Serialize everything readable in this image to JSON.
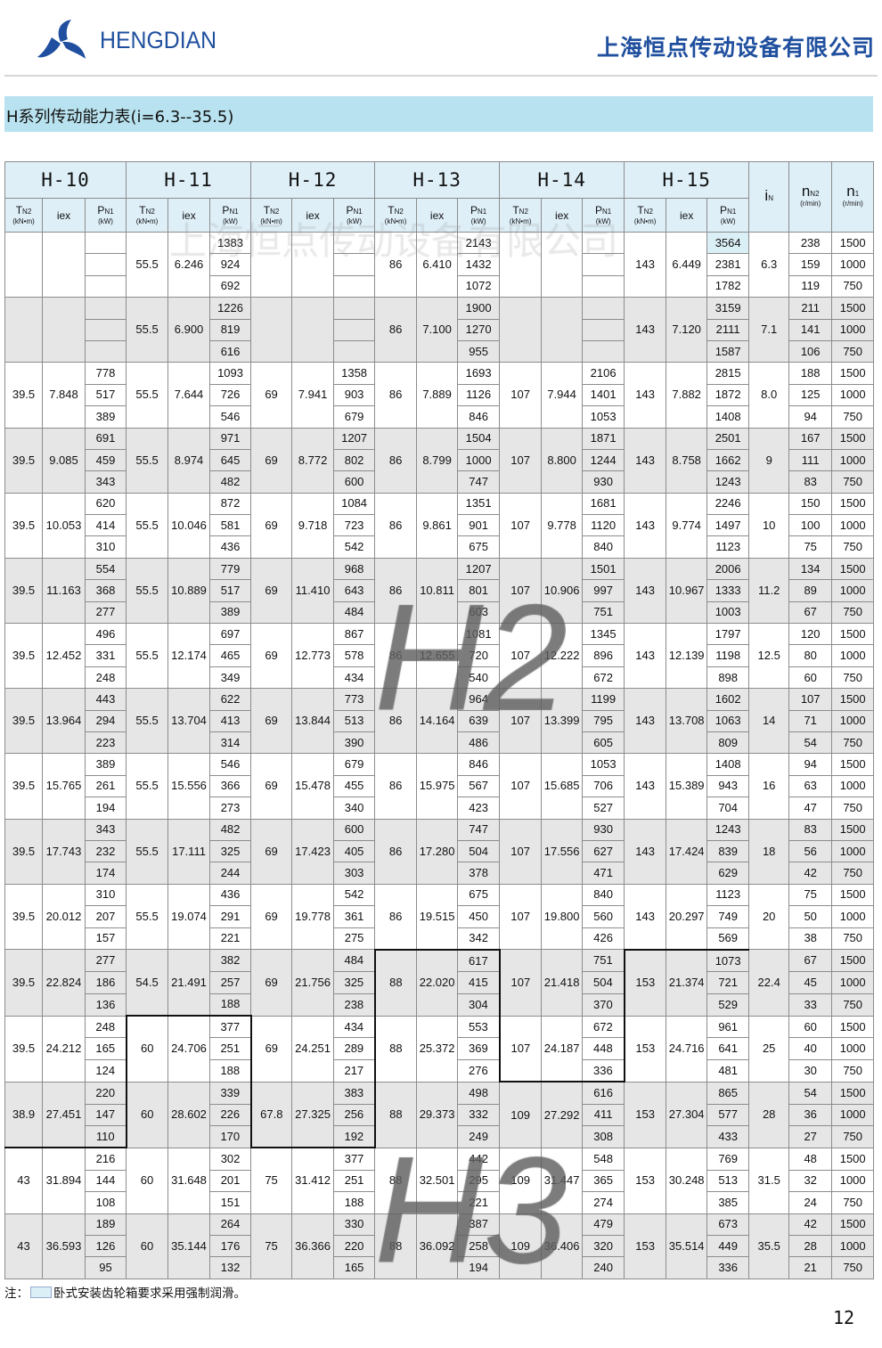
{
  "header": {
    "brand": "HENGDIAN",
    "company": "上海恒点传动设备有限公司",
    "logo_icon": "pinwheel-logo-icon",
    "brand_color": "#1f4f9e"
  },
  "title": "H系列传动能力表(i=6.3--35.5)",
  "watermark": "上海恒点传动设备有限公司",
  "region_marks": {
    "h2": "H2",
    "h3": "H3"
  },
  "table": {
    "models": [
      "H-10",
      "H-11",
      "H-12",
      "H-13",
      "H-14",
      "H-15"
    ],
    "sub_headers": {
      "tn2": {
        "sym": "T",
        "sub": "N2",
        "unit": "(kN•m)"
      },
      "iex": {
        "sym": "iex"
      },
      "pn1": {
        "sym": "P",
        "sub": "N1",
        "unit": "(kW)"
      }
    },
    "in_header": {
      "sym": "i",
      "sub": "N"
    },
    "nn2_header": {
      "sym": "n",
      "sub": "N2",
      "unit": "(r/min)"
    },
    "n1_header": {
      "sym": "n",
      "sub": "1",
      "unit": "(r/min)"
    },
    "highlight_color": "#dbeff7",
    "groups": [
      {
        "iN": "6.3",
        "nN2": [
          "238",
          "159",
          "119"
        ],
        "n1": [
          "1500",
          "1000",
          "750"
        ],
        "m": [
          null,
          [
            "55.5",
            "6.246",
            [
              "1383",
              "924",
              "692"
            ]
          ],
          null,
          [
            "86",
            "6.410",
            [
              "2143",
              "1432",
              "1072"
            ]
          ],
          null,
          [
            "143",
            "6.449",
            [
              "3564",
              "2381",
              "1782"
            ]
          ]
        ]
      },
      {
        "iN": "7.1",
        "nN2": [
          "211",
          "141",
          "106"
        ],
        "n1": [
          "1500",
          "1000",
          "750"
        ],
        "m": [
          null,
          [
            "55.5",
            "6.900",
            [
              "1226",
              "819",
              "616"
            ]
          ],
          null,
          [
            "86",
            "7.100",
            [
              "1900",
              "1270",
              "955"
            ]
          ],
          null,
          [
            "143",
            "7.120",
            [
              "3159",
              "2111",
              "1587"
            ]
          ]
        ]
      },
      {
        "iN": "8.0",
        "nN2": [
          "188",
          "125",
          "94"
        ],
        "n1": [
          "1500",
          "1000",
          "750"
        ],
        "m": [
          [
            "39.5",
            "7.848",
            [
              "778",
              "517",
              "389"
            ]
          ],
          [
            "55.5",
            "7.644",
            [
              "1093",
              "726",
              "546"
            ]
          ],
          [
            "69",
            "7.941",
            [
              "1358",
              "903",
              "679"
            ]
          ],
          [
            "86",
            "7.889",
            [
              "1693",
              "1126",
              "846"
            ]
          ],
          [
            "107",
            "7.944",
            [
              "2106",
              "1401",
              "1053"
            ]
          ],
          [
            "143",
            "7.882",
            [
              "2815",
              "1872",
              "1408"
            ]
          ]
        ]
      },
      {
        "iN": "9",
        "nN2": [
          "167",
          "111",
          "83"
        ],
        "n1": [
          "1500",
          "1000",
          "750"
        ],
        "m": [
          [
            "39.5",
            "9.085",
            [
              "691",
              "459",
              "343"
            ]
          ],
          [
            "55.5",
            "8.974",
            [
              "971",
              "645",
              "482"
            ]
          ],
          [
            "69",
            "8.772",
            [
              "1207",
              "802",
              "600"
            ]
          ],
          [
            "86",
            "8.799",
            [
              "1504",
              "1000",
              "747"
            ]
          ],
          [
            "107",
            "8.800",
            [
              "1871",
              "1244",
              "930"
            ]
          ],
          [
            "143",
            "8.758",
            [
              "2501",
              "1662",
              "1243"
            ]
          ]
        ]
      },
      {
        "iN": "10",
        "nN2": [
          "150",
          "100",
          "75"
        ],
        "n1": [
          "1500",
          "1000",
          "750"
        ],
        "m": [
          [
            "39.5",
            "10.053",
            [
              "620",
              "414",
              "310"
            ]
          ],
          [
            "55.5",
            "10.046",
            [
              "872",
              "581",
              "436"
            ]
          ],
          [
            "69",
            "9.718",
            [
              "1084",
              "723",
              "542"
            ]
          ],
          [
            "86",
            "9.861",
            [
              "1351",
              "901",
              "675"
            ]
          ],
          [
            "107",
            "9.778",
            [
              "1681",
              "1120",
              "840"
            ]
          ],
          [
            "143",
            "9.774",
            [
              "2246",
              "1497",
              "1123"
            ]
          ]
        ]
      },
      {
        "iN": "11.2",
        "nN2": [
          "134",
          "89",
          "67"
        ],
        "n1": [
          "1500",
          "1000",
          "750"
        ],
        "m": [
          [
            "39.5",
            "11.163",
            [
              "554",
              "368",
              "277"
            ]
          ],
          [
            "55.5",
            "10.889",
            [
              "779",
              "517",
              "389"
            ]
          ],
          [
            "69",
            "11.410",
            [
              "968",
              "643",
              "484"
            ]
          ],
          [
            "86",
            "10.811",
            [
              "1207",
              "801",
              "603"
            ]
          ],
          [
            "107",
            "10.906",
            [
              "1501",
              "997",
              "751"
            ]
          ],
          [
            "143",
            "10.967",
            [
              "2006",
              "1333",
              "1003"
            ]
          ]
        ]
      },
      {
        "iN": "12.5",
        "nN2": [
          "120",
          "80",
          "60"
        ],
        "n1": [
          "1500",
          "1000",
          "750"
        ],
        "m": [
          [
            "39.5",
            "12.452",
            [
              "496",
              "331",
              "248"
            ]
          ],
          [
            "55.5",
            "12.174",
            [
              "697",
              "465",
              "349"
            ]
          ],
          [
            "69",
            "12.773",
            [
              "867",
              "578",
              "434"
            ]
          ],
          [
            "86",
            "12.655",
            [
              "1081",
              "720",
              "540"
            ]
          ],
          [
            "107",
            "12.222",
            [
              "1345",
              "896",
              "672"
            ]
          ],
          [
            "143",
            "12.139",
            [
              "1797",
              "1198",
              "898"
            ]
          ]
        ]
      },
      {
        "iN": "14",
        "nN2": [
          "107",
          "71",
          "54"
        ],
        "n1": [
          "1500",
          "1000",
          "750"
        ],
        "m": [
          [
            "39.5",
            "13.964",
            [
              "443",
              "294",
              "223"
            ]
          ],
          [
            "55.5",
            "13.704",
            [
              "622",
              "413",
              "314"
            ]
          ],
          [
            "69",
            "13.844",
            [
              "773",
              "513",
              "390"
            ]
          ],
          [
            "86",
            "14.164",
            [
              "964",
              "639",
              "486"
            ]
          ],
          [
            "107",
            "13.399",
            [
              "1199",
              "795",
              "605"
            ]
          ],
          [
            "143",
            "13.708",
            [
              "1602",
              "1063",
              "809"
            ]
          ]
        ]
      },
      {
        "iN": "16",
        "nN2": [
          "94",
          "63",
          "47"
        ],
        "n1": [
          "1500",
          "1000",
          "750"
        ],
        "m": [
          [
            "39.5",
            "15.765",
            [
              "389",
              "261",
              "194"
            ]
          ],
          [
            "55.5",
            "15.556",
            [
              "546",
              "366",
              "273"
            ]
          ],
          [
            "69",
            "15.478",
            [
              "679",
              "455",
              "340"
            ]
          ],
          [
            "86",
            "15.975",
            [
              "846",
              "567",
              "423"
            ]
          ],
          [
            "107",
            "15.685",
            [
              "1053",
              "706",
              "527"
            ]
          ],
          [
            "143",
            "15.389",
            [
              "1408",
              "943",
              "704"
            ]
          ]
        ]
      },
      {
        "iN": "18",
        "nN2": [
          "83",
          "56",
          "42"
        ],
        "n1": [
          "1500",
          "1000",
          "750"
        ],
        "m": [
          [
            "39.5",
            "17.743",
            [
              "343",
              "232",
              "174"
            ]
          ],
          [
            "55.5",
            "17.111",
            [
              "482",
              "325",
              "244"
            ]
          ],
          [
            "69",
            "17.423",
            [
              "600",
              "405",
              "303"
            ]
          ],
          [
            "86",
            "17.280",
            [
              "747",
              "504",
              "378"
            ]
          ],
          [
            "107",
            "17.556",
            [
              "930",
              "627",
              "471"
            ]
          ],
          [
            "143",
            "17.424",
            [
              "1243",
              "839",
              "629"
            ]
          ]
        ]
      },
      {
        "iN": "20",
        "nN2": [
          "75",
          "50",
          "38"
        ],
        "n1": [
          "1500",
          "1000",
          "750"
        ],
        "m": [
          [
            "39.5",
            "20.012",
            [
              "310",
              "207",
              "157"
            ]
          ],
          [
            "55.5",
            "19.074",
            [
              "436",
              "291",
              "221"
            ]
          ],
          [
            "69",
            "19.778",
            [
              "542",
              "361",
              "275"
            ]
          ],
          [
            "86",
            "19.515",
            [
              "675",
              "450",
              "342"
            ]
          ],
          [
            "107",
            "19.800",
            [
              "840",
              "560",
              "426"
            ]
          ],
          [
            "143",
            "20.297",
            [
              "1123",
              "749",
              "569"
            ]
          ]
        ]
      },
      {
        "iN": "22.4",
        "nN2": [
          "67",
          "45",
          "33"
        ],
        "n1": [
          "1500",
          "1000",
          "750"
        ],
        "m": [
          [
            "39.5",
            "22.824",
            [
              "277",
              "186",
              "136"
            ]
          ],
          [
            "54.5",
            "21.491",
            [
              "382",
              "257",
              "188"
            ]
          ],
          [
            "69",
            "21.756",
            [
              "484",
              "325",
              "238"
            ]
          ],
          [
            "88",
            "22.020",
            [
              "617",
              "415",
              "304"
            ]
          ],
          [
            "107",
            "21.418",
            [
              "751",
              "504",
              "370"
            ]
          ],
          [
            "153",
            "21.374",
            [
              "1073",
              "721",
              "529"
            ]
          ]
        ]
      },
      {
        "iN": "25",
        "nN2": [
          "60",
          "40",
          "30"
        ],
        "n1": [
          "1500",
          "1000",
          "750"
        ],
        "m": [
          [
            "39.5",
            "24.212",
            [
              "248",
              "165",
              "124"
            ]
          ],
          [
            "60",
            "24.706",
            [
              "377",
              "251",
              "188"
            ]
          ],
          [
            "69",
            "24.251",
            [
              "434",
              "289",
              "217"
            ]
          ],
          [
            "88",
            "25.372",
            [
              "553",
              "369",
              "276"
            ]
          ],
          [
            "107",
            "24.187",
            [
              "672",
              "448",
              "336"
            ]
          ],
          [
            "153",
            "24.716",
            [
              "961",
              "641",
              "481"
            ]
          ]
        ]
      },
      {
        "iN": "28",
        "nN2": [
          "54",
          "36",
          "27"
        ],
        "n1": [
          "1500",
          "1000",
          "750"
        ],
        "m": [
          [
            "38.9",
            "27.451",
            [
              "220",
              "147",
              "110"
            ]
          ],
          [
            "60",
            "28.602",
            [
              "339",
              "226",
              "170"
            ]
          ],
          [
            "67.8",
            "27.325",
            [
              "383",
              "256",
              "192"
            ]
          ],
          [
            "88",
            "29.373",
            [
              "498",
              "332",
              "249"
            ]
          ],
          [
            "109",
            "27.292",
            [
              "616",
              "411",
              "308"
            ]
          ],
          [
            "153",
            "27.304",
            [
              "865",
              "577",
              "433"
            ]
          ]
        ]
      },
      {
        "iN": "31.5",
        "nN2": [
          "48",
          "32",
          "24"
        ],
        "n1": [
          "1500",
          "1000",
          "750"
        ],
        "m": [
          [
            "43",
            "31.894",
            [
              "216",
              "144",
              "108"
            ]
          ],
          [
            "60",
            "31.648",
            [
              "302",
              "201",
              "151"
            ]
          ],
          [
            "75",
            "31.412",
            [
              "377",
              "251",
              "188"
            ]
          ],
          [
            "88",
            "32.501",
            [
              "442",
              "295",
              "221"
            ]
          ],
          [
            "109",
            "31.447",
            [
              "548",
              "365",
              "274"
            ]
          ],
          [
            "153",
            "30.248",
            [
              "769",
              "513",
              "385"
            ]
          ]
        ]
      },
      {
        "iN": "35.5",
        "nN2": [
          "42",
          "28",
          "21"
        ],
        "n1": [
          "1500",
          "1000",
          "750"
        ],
        "m": [
          [
            "43",
            "36.593",
            [
              "189",
              "126",
              "95"
            ]
          ],
          [
            "60",
            "35.144",
            [
              "264",
              "176",
              "132"
            ]
          ],
          [
            "75",
            "36.366",
            [
              "330",
              "220",
              "165"
            ]
          ],
          [
            "88",
            "36.092",
            [
              "387",
              "258",
              "194"
            ]
          ],
          [
            "109",
            "36.406",
            [
              "479",
              "320",
              "240"
            ]
          ],
          [
            "153",
            "35.514",
            [
              "673",
              "449",
              "336"
            ]
          ]
        ]
      }
    ]
  },
  "note": {
    "prefix": "注：",
    "text": "卧式安装齿轮箱要求采用强制润滑。"
  },
  "page_number": "12"
}
